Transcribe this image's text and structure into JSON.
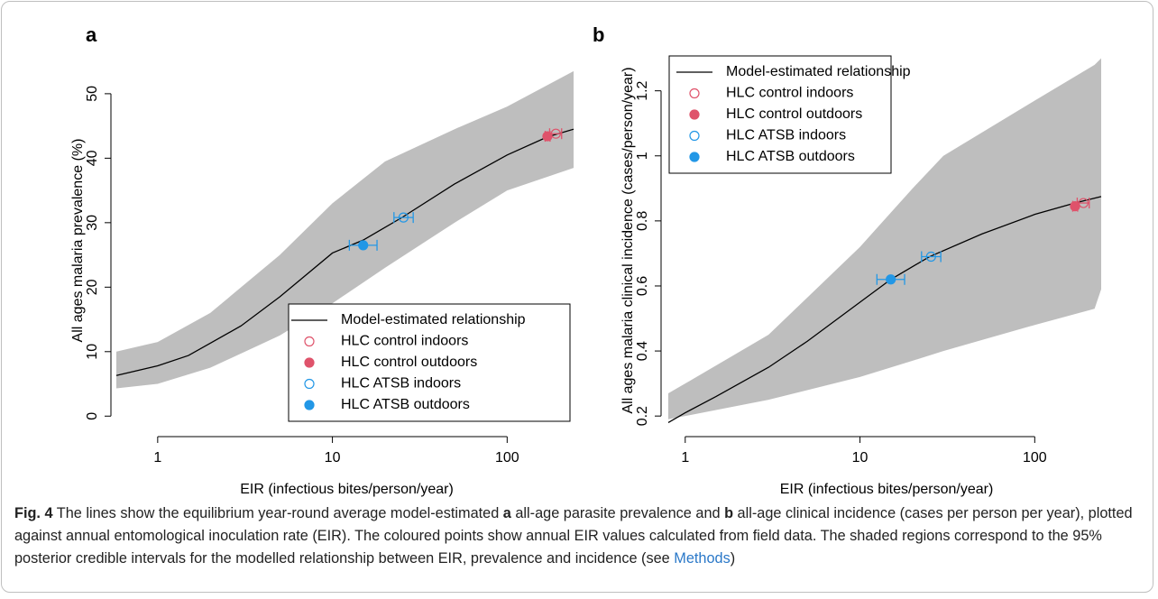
{
  "chart_data": [
    {
      "type": "line",
      "panel_label": "a",
      "y_label": "All ages malaria prevalence (%)",
      "x_label": "EIR (infectious bites/person/year)",
      "log_x": true,
      "xlim": [
        0.58,
        240
      ],
      "xticks": [
        1,
        10,
        100
      ],
      "ylim": [
        -1.5,
        56
      ],
      "yticks": [
        0,
        10,
        20,
        30,
        40,
        50
      ],
      "legend_position": "bottom-right",
      "band": {
        "color": "#bebebe",
        "x": [
          0.58,
          1,
          2,
          5,
          10,
          20,
          50,
          100,
          240
        ],
        "lower": [
          4.3,
          5,
          7.5,
          12.5,
          17.5,
          23,
          30,
          35,
          38.5
        ],
        "upper": [
          10,
          11.5,
          16,
          25,
          33,
          39.5,
          44.5,
          48,
          53.5
        ]
      },
      "series": [
        {
          "name": "Model-estimated relationship",
          "color": "#000000",
          "x": [
            0.58,
            1,
            1.5,
            3,
            5,
            10,
            15,
            25,
            50,
            100,
            170,
            240
          ],
          "values": [
            6.3,
            7.8,
            9.4,
            14,
            18.5,
            25.3,
            27.3,
            30.8,
            36,
            40.5,
            43.3,
            44.5
          ]
        },
        {
          "name": "HLC control indoors",
          "color": "#df536b",
          "filled": false,
          "x": [
            190
          ],
          "values": [
            43.8
          ],
          "x_low": [
            175
          ],
          "x_high": [
            205
          ]
        },
        {
          "name": "HLC control outdoors",
          "color": "#df536b",
          "filled": true,
          "x": [
            170
          ],
          "values": [
            43.4
          ],
          "x_low": [
            165
          ],
          "x_high": [
            176
          ]
        },
        {
          "name": "HLC ATSB indoors",
          "color": "#2297e6",
          "filled": false,
          "x": [
            25.5
          ],
          "values": [
            30.8
          ],
          "x_low": [
            22.5
          ],
          "x_high": [
            29
          ]
        },
        {
          "name": "HLC ATSB outdoors",
          "color": "#2297e6",
          "filled": true,
          "x": [
            15
          ],
          "values": [
            26.5
          ],
          "x_low": [
            12.5
          ],
          "x_high": [
            18
          ]
        }
      ]
    },
    {
      "type": "line",
      "panel_label": "b",
      "y_label": "All ages malaria clinical incidence (cases/person/year)",
      "x_label": "EIR (infectious bites/person/year)",
      "log_x": true,
      "xlim": [
        0.8,
        240
      ],
      "xticks": [
        1,
        10,
        100
      ],
      "ylim": [
        0.17,
        1.31
      ],
      "yticks": [
        0.2,
        0.4,
        0.6,
        0.8,
        1.0,
        1.2
      ],
      "legend_position": "top-left",
      "band": {
        "color": "#bebebe",
        "x": [
          0.8,
          1,
          3,
          10,
          20,
          30,
          100,
          220,
          240
        ],
        "lower": [
          0.19,
          0.2,
          0.25,
          0.32,
          0.37,
          0.4,
          0.48,
          0.53,
          0.59
        ],
        "upper": [
          0.27,
          0.3,
          0.45,
          0.72,
          0.9,
          1.0,
          1.17,
          1.28,
          1.3
        ]
      },
      "series": [
        {
          "name": "Model-estimated relationship",
          "color": "#000000",
          "x": [
            0.8,
            1,
            1.5,
            3,
            5,
            10,
            15,
            25,
            50,
            100,
            170,
            240
          ],
          "values": [
            0.18,
            0.21,
            0.26,
            0.35,
            0.43,
            0.55,
            0.62,
            0.69,
            0.76,
            0.82,
            0.855,
            0.875
          ]
        },
        {
          "name": "HLC control indoors",
          "color": "#df536b",
          "filled": false,
          "x": [
            190
          ],
          "values": [
            0.855
          ],
          "x_low": [
            175
          ],
          "x_high": [
            205
          ]
        },
        {
          "name": "HLC control outdoors",
          "color": "#df536b",
          "filled": true,
          "x": [
            170
          ],
          "values": [
            0.845
          ],
          "x_low": [
            165
          ],
          "x_high": [
            176
          ]
        },
        {
          "name": "HLC ATSB indoors",
          "color": "#2297e6",
          "filled": false,
          "x": [
            25.5
          ],
          "values": [
            0.69
          ],
          "x_low": [
            22.5
          ],
          "x_high": [
            29
          ]
        },
        {
          "name": "HLC ATSB outdoors",
          "color": "#2297e6",
          "filled": true,
          "x": [
            15
          ],
          "values": [
            0.62
          ],
          "x_low": [
            12.5
          ],
          "x_high": [
            18
          ]
        }
      ]
    }
  ],
  "caption": [
    "Fig. 4",
    " The lines show the equilibrium year-round average model-estimated ",
    "a",
    " all-age parasite prevalence and ",
    "b",
    " all-age clinical incidence (cases per person per year), plotted against annual entomological inoculation rate (EIR). The coloured points show annual EIR values calculated from field data. The shaded regions correspond to the 95% posterior credible intervals for the modelled relationship between EIR, prevalence and incidence (see ",
    "Methods",
    ")"
  ]
}
